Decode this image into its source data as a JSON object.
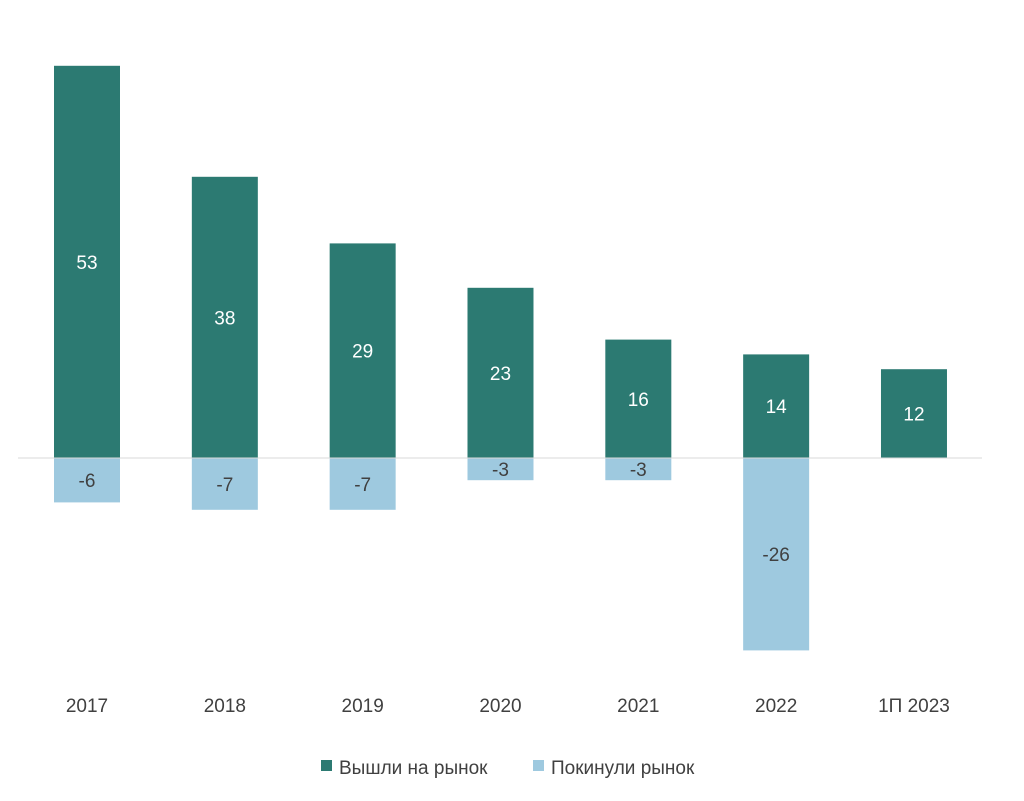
{
  "chart_data": {
    "type": "bar",
    "stacked": true,
    "categories": [
      "2017",
      "2018",
      "2019",
      "2020",
      "2021",
      "2022",
      "1П 2023"
    ],
    "series": [
      {
        "name": "Вышли на рынок",
        "values": [
          53,
          38,
          29,
          23,
          16,
          14,
          12
        ],
        "color": "#2c7a72"
      },
      {
        "name": "Покинули рынок",
        "values": [
          -6,
          -7,
          -7,
          -3,
          -3,
          -26,
          null
        ],
        "color": "#9ec9df"
      }
    ],
    "title": "",
    "xlabel": "",
    "ylabel": "",
    "ylim": [
      -30,
      55
    ],
    "grid": false,
    "legend_position": "bottom",
    "data_labels": true
  }
}
